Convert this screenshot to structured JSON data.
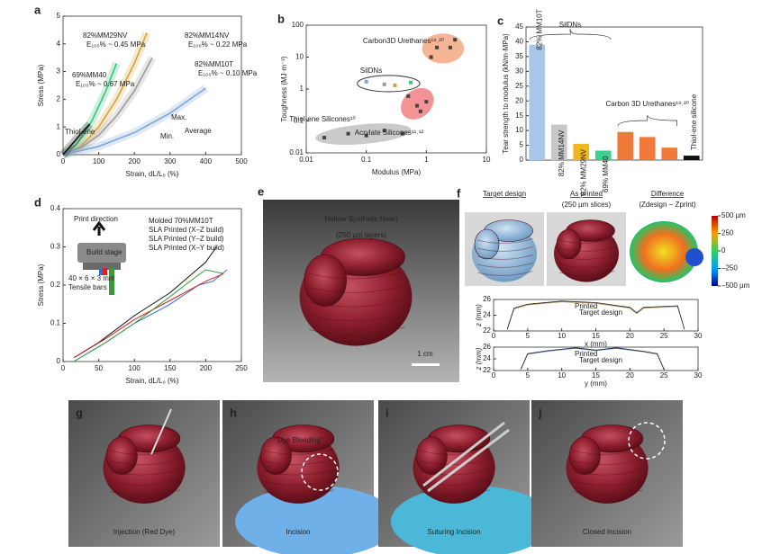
{
  "chart_data": [
    {
      "panel": "a",
      "type": "line",
      "xlabel": "Strain, dL/L₀ (%)",
      "ylabel": "Stress (MPa)",
      "xlim": [
        0,
        500
      ],
      "xticks": [
        0,
        100,
        200,
        300,
        400,
        500
      ],
      "ylim": [
        0,
        5
      ],
      "yticks": [
        0,
        1,
        2,
        3,
        4,
        5
      ],
      "series": [
        {
          "name": "82%MM29NV",
          "note": "E₁₀₀% ~ 0.45 MPa",
          "color": "#d4a43a",
          "x": [
            0,
            50,
            100,
            150,
            200,
            235
          ],
          "values": [
            0,
            0.3,
            1.0,
            2.0,
            3.3,
            4.4
          ]
        },
        {
          "name": "69%MM40",
          "note": "E₁₀₀% ~ 0.67 MPa",
          "color": "#3cc47a",
          "x": [
            0,
            40,
            80,
            120,
            150
          ],
          "values": [
            0,
            0.4,
            1.2,
            2.3,
            3.3
          ]
        },
        {
          "name": "82%MM14NV",
          "note": "E₁₀₀% ~ 0.22 MPa",
          "color": "#9a9a9a",
          "x": [
            0,
            50,
            100,
            150,
            200,
            250
          ],
          "values": [
            0,
            0.25,
            0.7,
            1.4,
            2.3,
            3.5
          ]
        },
        {
          "name": "82%MM10T",
          "note": "E₁₀₀% ~ 0.10 MPa",
          "color": "#7ea6d8",
          "x": [
            0,
            100,
            200,
            300,
            400
          ],
          "values": [
            0,
            0.3,
            0.8,
            1.5,
            2.4
          ]
        },
        {
          "name": "Thiol-ene",
          "color": "#111111",
          "x": [
            0,
            20,
            40,
            60,
            75
          ],
          "values": [
            0,
            0.3,
            0.6,
            0.9,
            1.1
          ]
        }
      ],
      "annotations": [
        "Max.",
        "Min.",
        "Average"
      ]
    },
    {
      "panel": "b",
      "type": "scatter",
      "log_scale": true,
      "xlabel": "Modulus (MPa)",
      "ylabel": "Toughness (MJ·m⁻³)",
      "xlim": [
        0.01,
        10
      ],
      "xticks": [
        0.01,
        0.1,
        1,
        10
      ],
      "ylim": [
        0.01,
        100
      ],
      "yticks": [
        0.01,
        0.1,
        1,
        10,
        100
      ],
      "series": [
        {
          "name": "SilDNs",
          "color": "#ffffff",
          "colors": [
            "#7ea6d8",
            "#9a9a9a",
            "#d4a43a",
            "#3cc47a"
          ],
          "x": [
            0.1,
            0.2,
            0.3,
            0.55
          ],
          "values": [
            1.7,
            1.4,
            1.3,
            1.6
          ]
        },
        {
          "name": "Carbon3D Urethanes¹⁹˒²⁰",
          "color": "#f4a27a",
          "x": [
            1.5,
            3,
            2.5,
            1.2
          ],
          "values": [
            20,
            35,
            20,
            10
          ]
        },
        {
          "name": "Thiol-ene Silicones¹⁰",
          "color": "#bdbdbd",
          "x": [
            0.02,
            0.05,
            0.1,
            0.2,
            0.4
          ],
          "values": [
            0.03,
            0.04,
            0.035,
            0.05,
            0.04
          ]
        },
        {
          "name": "Acrylate Silicones¹¹˒¹²",
          "color": "#f0787a",
          "x": [
            0.5,
            0.7,
            0.8,
            1.0
          ],
          "values": [
            0.6,
            0.3,
            0.2,
            0.4
          ]
        }
      ]
    },
    {
      "panel": "c",
      "type": "bar",
      "ylabel": "Tear strength to modulus (kN/m·MPa)",
      "ylim": [
        0,
        45
      ],
      "yticks": [
        0,
        5,
        10,
        15,
        20,
        25,
        30,
        35,
        40,
        45
      ],
      "categories": [
        "82% MM10T",
        "82% MM14NV",
        "82% MM29NV",
        "69% MM40",
        null,
        null,
        null,
        "Thiol-ene silicone"
      ],
      "values": [
        39,
        12,
        5.5,
        3.2,
        9.5,
        7.8,
        4.2,
        1.5
      ],
      "colors": [
        "#a7c6ea",
        "#c8c8c8",
        "#f2b61e",
        "#3ccf8e",
        "#f07a3a",
        "#f07a3a",
        "#f07a3a",
        "#111111"
      ],
      "group_labels": [
        "SilDNs",
        "Carbon 3D Urethanes¹⁹˒²⁰"
      ]
    },
    {
      "panel": "d",
      "type": "line",
      "xlabel": "Strain, dL/L₀ (%)",
      "ylabel": "Stress (MPa)",
      "xlim": [
        0,
        250
      ],
      "xticks": [
        0,
        50,
        100,
        150,
        200,
        250
      ],
      "ylim": [
        0,
        0.4
      ],
      "yticks": [
        0,
        0.1,
        0.2,
        0.3,
        0.4
      ],
      "series": [
        {
          "name": "Molded  70%MM10T",
          "color": "#111111",
          "x": [
            15,
            50,
            100,
            150,
            200,
            215
          ],
          "values": [
            0.01,
            0.05,
            0.12,
            0.18,
            0.26,
            0.3
          ]
        },
        {
          "name": "SLA Printed (X–Z build)",
          "color": "#2f6fd0",
          "x": [
            15,
            60,
            100,
            150,
            190,
            210,
            230
          ],
          "values": [
            0.0,
            0.05,
            0.1,
            0.15,
            0.2,
            0.21,
            0.24
          ]
        },
        {
          "name": "SLA Printed (Y–Z build)",
          "color": "#e02020",
          "x": [
            15,
            60,
            100,
            150,
            200,
            225
          ],
          "values": [
            0.01,
            0.06,
            0.11,
            0.16,
            0.21,
            0.23
          ]
        },
        {
          "name": "SLA Printed (X–Y build)",
          "color": "#3a9a3a",
          "x": [
            15,
            60,
            100,
            150,
            185,
            200,
            225
          ],
          "values": [
            0.0,
            0.05,
            0.1,
            0.17,
            0.22,
            0.24,
            0.23
          ]
        }
      ],
      "annotations": [
        "Print direction",
        "Build stage",
        "40 × 6 × 3 mm",
        "Tensile bars"
      ]
    },
    {
      "type": "line",
      "xlabel": "x (mm)",
      "ylabel": "z (mm)",
      "xlim": [
        0,
        30
      ],
      "xticks": [
        0,
        5,
        10,
        15,
        20,
        25,
        30
      ],
      "ylim": [
        22,
        26
      ],
      "yticks": [
        22,
        24,
        26
      ],
      "series": [
        {
          "name": "Printed",
          "color": "#b89a50",
          "x": [
            2,
            3,
            5,
            10,
            15,
            20,
            21,
            22,
            27,
            28
          ],
          "values": [
            22.2,
            24.8,
            25.3,
            25.7,
            25.5,
            24.9,
            24.2,
            24.9,
            25.1,
            22.2
          ]
        },
        {
          "name": "Target design",
          "color": "#222222",
          "x": [
            2,
            3,
            5,
            10,
            15,
            20,
            21,
            22,
            27,
            28
          ],
          "values": [
            22.2,
            24.9,
            25.4,
            25.8,
            25.6,
            25.0,
            24.3,
            25.0,
            25.2,
            22.2
          ]
        }
      ]
    },
    {
      "type": "line",
      "xlabel": "y (mm)",
      "ylabel": "z (mm)",
      "xlim": [
        0,
        30
      ],
      "xticks": [
        0,
        5,
        10,
        15,
        20,
        25,
        30
      ],
      "ylim": [
        22,
        26
      ],
      "yticks": [
        22,
        24,
        26
      ],
      "series": [
        {
          "name": "Printed",
          "color": "#5b8fd8",
          "x": [
            4,
            5,
            8,
            12,
            15,
            18,
            22,
            24,
            25
          ],
          "values": [
            22.2,
            24.8,
            25.3,
            25.8,
            25.4,
            25.8,
            25.2,
            24.8,
            22.2
          ]
        },
        {
          "name": "Target design",
          "color": "#222222",
          "x": [
            4,
            5,
            8,
            12,
            15,
            18,
            22,
            24,
            25
          ],
          "values": [
            22.2,
            24.9,
            25.4,
            25.9,
            25.5,
            25.9,
            25.3,
            24.9,
            22.2
          ]
        }
      ]
    }
  ],
  "figures": [
    {
      "panel": "e",
      "title": "Hollow Synthetic Heart",
      "subtitle": "(250 µm layers)",
      "scale_bar": "1 cm"
    },
    {
      "panel": "f",
      "views": [
        {
          "title": "Target design"
        },
        {
          "title": "As printed",
          "subtitle": "(250 µm slices)"
        },
        {
          "title": "Difference",
          "subtitle": "(Zdesign − Zprint)"
        }
      ],
      "colorbar": {
        "lim": [
          -500,
          500
        ],
        "ticks": [
          {
            "value": 500,
            "label": "500 µm"
          },
          250,
          0,
          {
            "value": -250,
            "label": "–250"
          },
          {
            "value": -500,
            "label": "–500 µm"
          }
        ]
      }
    },
    {
      "panel": "g",
      "caption": "Injection (Red Dye)"
    },
    {
      "panel": "h",
      "caption": "Incision",
      "callout": "“Dye Bleeding”"
    },
    {
      "panel": "i",
      "caption": "Suturing Incision"
    },
    {
      "panel": "j",
      "caption": "Closed Incision"
    }
  ]
}
